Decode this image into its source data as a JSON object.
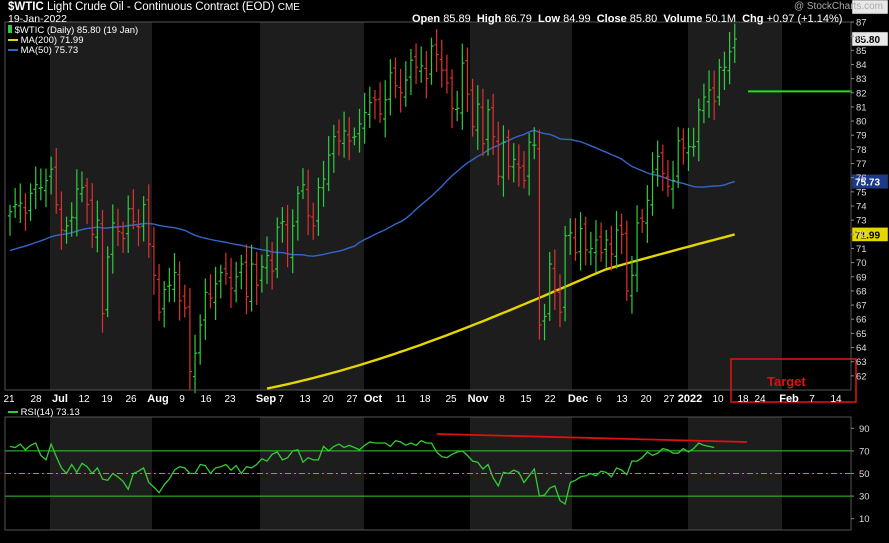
{
  "header": {
    "symbol": "$WTIC",
    "name": "Light Crude Oil - Continuous Contract (EOD)",
    "exchange": "CME",
    "date": "19-Jan-2022",
    "watermark": "@ StockCharts.com",
    "open_label": "Open",
    "open": "85.89",
    "high_label": "High",
    "high": "86.79",
    "low_label": "Low",
    "low": "84.99",
    "close_label": "Close",
    "close": "85.80",
    "volume_label": "Volume",
    "volume": "50.1M",
    "chg_label": "Chg",
    "chg": "+0.97 (+1.14%)"
  },
  "legend": {
    "price": "$WTIC (Daily) 85.80 (19 Jan)",
    "ma200": "MA(200) 71.99",
    "ma50": "MA(50) 75.73",
    "rsi": "RSI(14) 73.13"
  },
  "badges": {
    "last": "85.80",
    "ma50": "75.73",
    "ma200": "71.99",
    "rsi": "73.13"
  },
  "annotation": {
    "target_label": "Target",
    "target_price": 82.1
  },
  "colors": {
    "up": "#2ecc40",
    "down": "#e03030",
    "ma50": "#3366cc",
    "ma200": "#e6d600",
    "rsi": "#33cc33",
    "annotation": "#dd1111",
    "target_line": "#22dd22"
  },
  "chart_data": [
    {
      "type": "line",
      "title": "$WTIC (Daily) 85.80 (19 Jan)",
      "ylim": [
        61,
        87
      ],
      "yticks": [
        62,
        63,
        64,
        65,
        66,
        67,
        68,
        69,
        70,
        71,
        72,
        73,
        74,
        75,
        76,
        77,
        78,
        79,
        80,
        81,
        82,
        83,
        84,
        85,
        86,
        87
      ],
      "xticks": [
        "21",
        "28",
        "Jul",
        "12",
        "19",
        "26",
        "Aug",
        "9",
        "16",
        "23",
        "Sep",
        "7",
        "13",
        "20",
        "27",
        "Oct",
        "11",
        "18",
        "25",
        "Nov",
        "8",
        "15",
        "22",
        "Dec",
        "6",
        "13",
        "20",
        "27",
        "2022",
        "10",
        "18",
        "24",
        "Feb",
        "7",
        "14"
      ],
      "bold_ticks": [
        "Jul",
        "Aug",
        "Sep",
        "Oct",
        "Nov",
        "Dec",
        "2022",
        "Feb"
      ],
      "series": [
        {
          "name": "$WTIC (Daily)",
          "kind": "ohlc",
          "values": [
            73.6,
            74.1,
            74.2,
            73.5,
            74.9,
            75.5,
            75.3,
            75.8,
            76.6,
            74.1,
            72.3,
            72.6,
            73.2,
            75.2,
            75.3,
            74.1,
            72.0,
            73.0,
            66.4,
            70.4,
            72.8,
            72.2,
            71.7,
            73.8,
            72.9,
            72.5,
            74.1,
            71.3,
            69.1,
            66.5,
            68.1,
            68.4,
            69.3,
            67.3,
            66.8,
            62.3,
            63.6,
            65.6,
            67.9,
            67.5,
            68.5,
            69.3,
            69.2,
            68.2,
            69.0,
            69.9,
            67.6,
            69.9,
            68.4,
            69.7,
            70.5,
            69.4,
            72.5,
            72.9,
            70.6,
            72.6,
            74.9,
            75.5,
            73.3,
            72.6,
            75.3,
            75.9,
            77.6,
            78.9,
            78.6,
            79.3,
            78.6,
            78.9,
            79.8,
            80.6,
            81.3,
            81.5,
            80.5,
            81.5,
            83.4,
            82.5,
            82.0,
            82.9,
            84.3,
            83.8,
            83.9,
            83.0,
            85.3,
            84.7,
            83.6,
            82.7,
            80.9,
            80.9,
            84.1,
            81.9,
            79.6,
            81.2,
            78.4,
            80.8,
            78.9,
            76.1,
            78.5,
            76.8,
            77.3,
            76.7,
            75.8,
            78.5,
            78.3,
            65.6,
            66.2,
            69.9,
            68.0,
            66.5,
            71.9,
            72.1,
            70.7,
            72.4,
            70.9,
            71.0,
            71.6,
            70.7,
            71.6,
            70.6,
            72.3,
            72.0,
            68.0,
            69.1,
            72.8,
            72.9,
            74.4,
            76.4,
            77.5,
            76.3,
            75.4,
            75.8,
            78.6,
            78.1,
            78.2,
            78.2,
            80.8,
            81.7,
            82.2,
            81.4,
            83.8,
            83.8,
            84.9,
            85.8
          ]
        },
        {
          "name": "MA(200)",
          "values": []
        },
        {
          "name": "MA(50)",
          "values": []
        }
      ]
    },
    {
      "type": "line",
      "title": "RSI(14) 73.13",
      "ylim": [
        0,
        100
      ],
      "yticks": [
        10,
        30,
        50,
        70,
        90
      ],
      "overbought": 70,
      "oversold": 30,
      "midline": 50,
      "series": [
        {
          "name": "RSI(14)",
          "values": [
            74,
            73,
            76,
            71,
            75,
            77,
            66,
            62,
            76,
            65,
            55,
            50,
            58,
            51,
            59,
            56,
            50,
            55,
            45,
            44,
            50,
            47,
            43,
            36,
            50,
            52,
            55,
            42,
            38,
            33,
            40,
            45,
            53,
            56,
            55,
            50,
            50,
            58,
            57,
            50,
            55,
            56,
            58,
            53,
            57,
            50,
            56,
            55,
            58,
            63,
            61,
            67,
            69,
            62,
            64,
            70,
            71,
            60,
            64,
            62,
            62,
            74,
            70,
            74,
            76,
            73,
            75,
            73,
            71,
            75,
            78,
            77,
            77,
            77,
            74,
            79,
            78,
            75,
            77,
            75,
            79,
            77,
            77,
            69,
            65,
            64,
            67,
            69,
            70,
            66,
            61,
            60,
            54,
            58,
            46,
            39,
            51,
            50,
            53,
            51,
            42,
            48,
            54,
            30,
            31,
            37,
            39,
            26,
            23,
            42,
            44,
            47,
            48,
            50,
            48,
            52,
            51,
            47,
            55,
            53,
            49,
            61,
            61,
            64,
            69,
            66,
            68,
            72,
            71,
            68,
            68,
            72,
            69,
            72,
            77,
            75,
            74,
            73
          ]
        }
      ]
    }
  ]
}
